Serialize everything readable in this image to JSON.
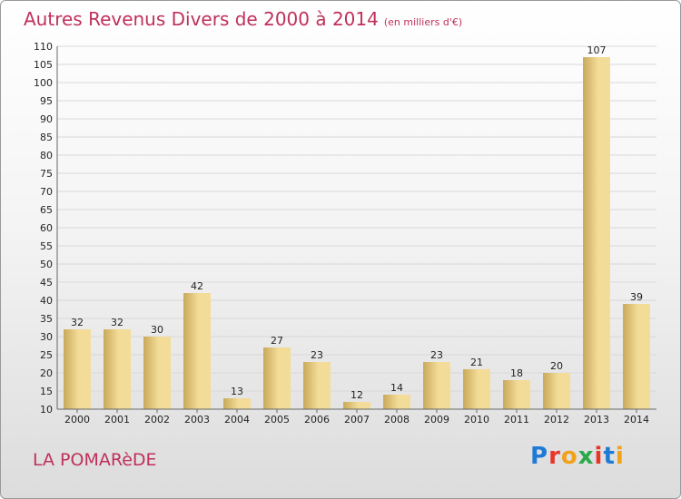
{
  "header": {
    "title": "Autres Revenus Divers de 2000 à 2014",
    "subtitle": "(en milliers d'€)"
  },
  "footer": {
    "commune": "LA POMARèDE",
    "logo_text": "Proxiti",
    "logo_colors": [
      "#1f7ad6",
      "#e8352a",
      "#f0a21a",
      "#2aa84a",
      "#e8352a",
      "#1f7ad6",
      "#f0a21a"
    ]
  },
  "chart_data": {
    "type": "bar",
    "categories": [
      "2000",
      "2001",
      "2002",
      "2003",
      "2004",
      "2005",
      "2006",
      "2007",
      "2008",
      "2009",
      "2010",
      "2011",
      "2012",
      "2013",
      "2014"
    ],
    "values": [
      32,
      32,
      30,
      42,
      13,
      27,
      23,
      12,
      14,
      23,
      21,
      18,
      20,
      107,
      39
    ],
    "ylim": [
      10,
      110
    ],
    "yticks": [
      10,
      15,
      20,
      25,
      30,
      35,
      40,
      45,
      50,
      55,
      60,
      65,
      70,
      75,
      80,
      85,
      90,
      95,
      100,
      105,
      110
    ],
    "grid": true,
    "colors": {
      "bar_light": "#f3dc98",
      "bar_dark": "#c9a95a",
      "grid": "#d8d8d8",
      "axis": "#666666"
    }
  }
}
